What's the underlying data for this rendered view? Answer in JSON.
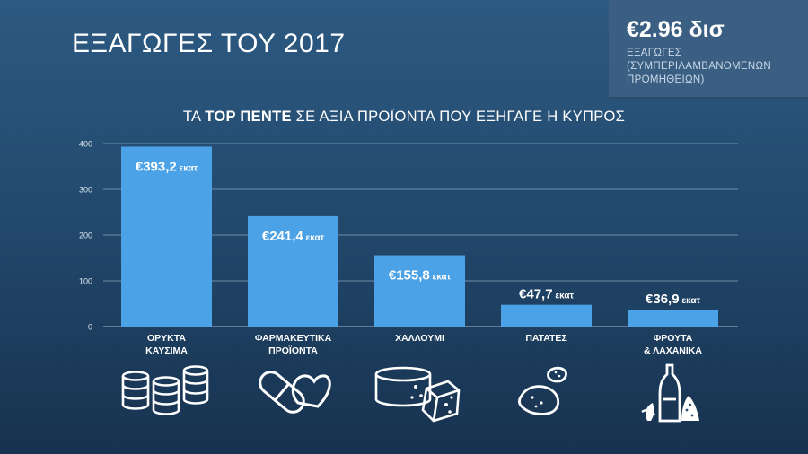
{
  "header": {
    "title": "ΕΞΑΓΩΓΕΣ ΤΟΥ 2017"
  },
  "stat": {
    "value": "€2.96 δισ",
    "label_line1": "ΕΞΑΓΩΓΕΣ",
    "label_line2": "(ΣΥΜΠΕΡΙΛΑΜΒΑΝΟΜΕΝΩΝ",
    "label_line3": "ΠΡΟΜΗΘΕΙΩΝ)"
  },
  "chart_data": {
    "type": "bar",
    "title_prefix": "ΤΑ ",
    "title_bold": "TOP ΠΕΝΤΕ",
    "title_suffix": " ΣΕ ΑΞΙΑ ΠΡΟΪΟΝΤΑ ΠΟΥ ΕΞΗΓΑΓΕ Η ΚΥΠΡΟΣ",
    "categories": [
      [
        "ΟΡΥΚΤΑ",
        "ΚΑΥΣΙΜΑ"
      ],
      [
        "ΦΑΡΜΑΚΕΥΤΙΚΑ",
        "ΠΡΟΪΟΝΤΑ"
      ],
      [
        "ΧΑΛΛΟΥΜΙ"
      ],
      [
        "ΠΑΤΑΤΕΣ"
      ],
      [
        "ΦΡΟΥΤΑ",
        "& ΛΑΧΑΝΙΚΑ"
      ]
    ],
    "values": [
      393.2,
      241.4,
      155.8,
      47.7,
      36.9
    ],
    "value_labels": [
      "€393,2",
      "€241,4",
      "€155,8",
      "€47,7",
      "€36,9"
    ],
    "value_unit": "εκατ",
    "ylim": [
      0,
      400
    ],
    "yticks": [
      "0",
      "100",
      "200",
      "300",
      "400"
    ],
    "grid": true,
    "bar_color": "#4ca2e6",
    "grid_color": "#8aa4bd"
  },
  "icons": [
    "oil-barrels-icon",
    "pills-icon",
    "halloumi-cheese-icon",
    "potato-icon",
    "olive-oil-vegetables-icon"
  ]
}
